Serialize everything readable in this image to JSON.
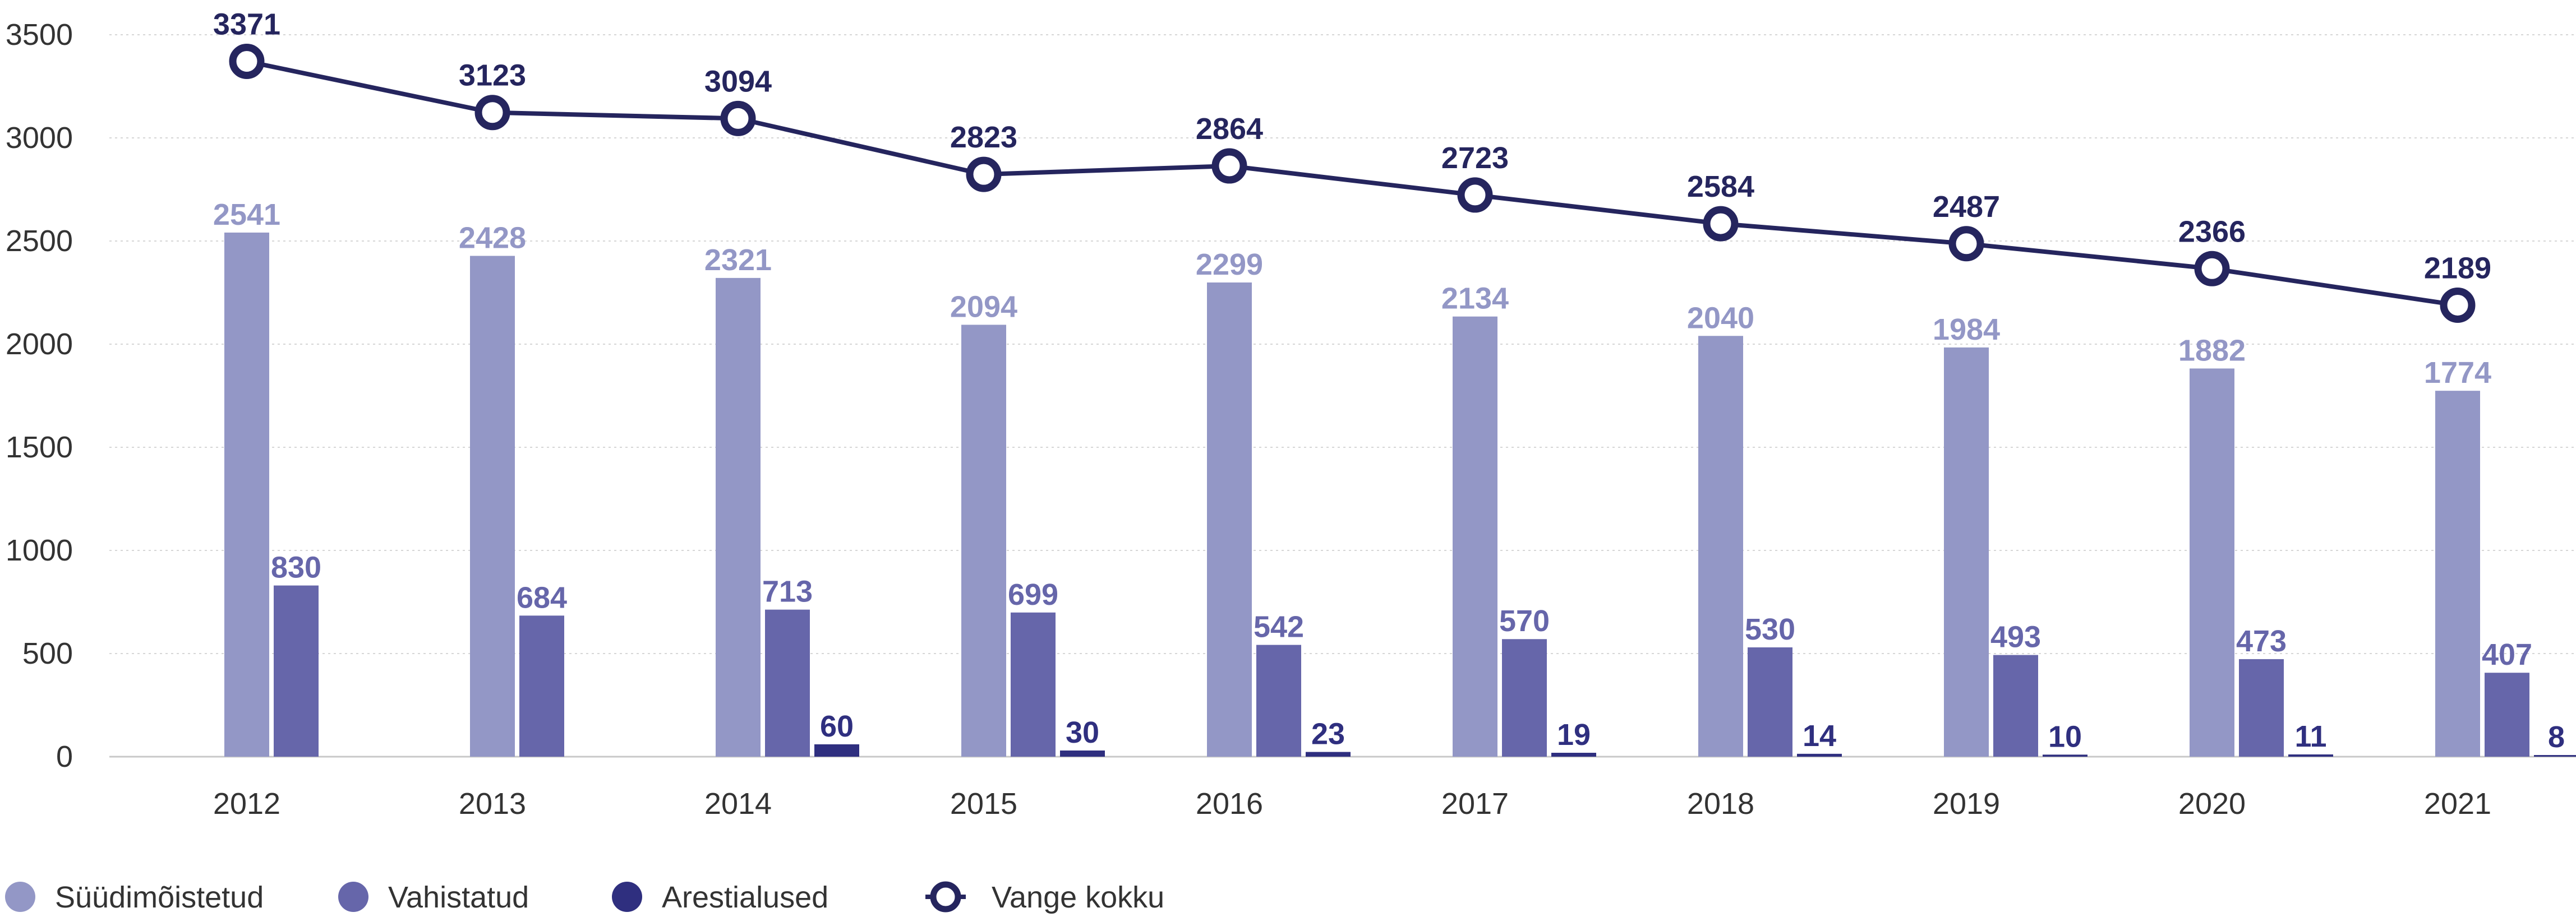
{
  "chart_data": {
    "type": "bar",
    "categories": [
      "2012",
      "2013",
      "2014",
      "2015",
      "2016",
      "2017",
      "2018",
      "2019",
      "2020",
      "2021"
    ],
    "series": [
      {
        "name": "Süüdimõistetud",
        "kind": "bar",
        "color": "#9397c6",
        "values": [
          2541,
          2428,
          2321,
          2094,
          2299,
          2134,
          2040,
          1984,
          1882,
          1774
        ]
      },
      {
        "name": "Vahistatud",
        "kind": "bar",
        "color": "#6666aa",
        "values": [
          830,
          684,
          713,
          699,
          542,
          570,
          530,
          493,
          473,
          407
        ]
      },
      {
        "name": "Arestialused",
        "kind": "bar",
        "color": "#2f2f7f",
        "values": [
          null,
          null,
          60,
          30,
          23,
          19,
          14,
          10,
          11,
          8
        ]
      },
      {
        "name": "Vange kokku",
        "kind": "line",
        "color": "#25255e",
        "values": [
          3371,
          3123,
          3094,
          2823,
          2864,
          2723,
          2584,
          2487,
          2366,
          2189
        ]
      }
    ],
    "y_ticks": [
      0,
      500,
      1000,
      1500,
      2000,
      2500,
      3000,
      3500
    ],
    "ylim": [
      0,
      3500
    ],
    "grid": true,
    "legend_position": "bottom-left",
    "title": "",
    "xlabel": "",
    "ylabel": ""
  }
}
